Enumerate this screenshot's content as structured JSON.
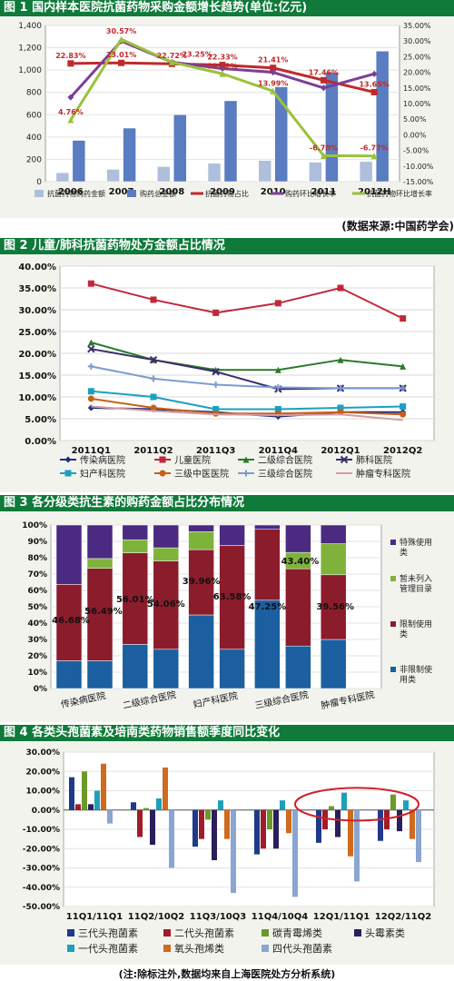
{
  "charts": {
    "c1": {
      "header": "图 1  国内样本医院抗菌药物采购金额增长趋势(单位:亿元)",
      "source": "(数据来源:中国药学会)"
    },
    "c2": {
      "header": "图 2  儿童/肺科抗菌药物处方金额占比情况"
    },
    "c3": {
      "header": "图 3  各分级类抗生素的购药金额占比分布情况"
    },
    "c4": {
      "header": "图 4  各类头孢菌素及培南类药物销售额季度同比变化",
      "note": "(注:除标注外,数据均来自上海医院处方分析系统)"
    }
  },
  "colors": {
    "header_bg": "#0f7a3a"
  },
  "chart_data": [
    {
      "type": "bar",
      "categories": [
        "2006",
        "2007",
        "2008",
        "2009",
        "2010",
        "2011",
        "2012H"
      ],
      "ylim": [
        0,
        1400
      ],
      "y2lim": [
        -15,
        35
      ],
      "yticks": [
        "0",
        "200",
        "400",
        "600",
        "800",
        "1,000",
        "1,200",
        "1,400"
      ],
      "y2ticks": [
        "-15.00%",
        "-10.00%",
        "-5.00%",
        "0.00%",
        "5.00%",
        "10.00%",
        "15.00%",
        "20.00%",
        "25.00%",
        "30.00%",
        "35.00%"
      ],
      "series": [
        {
          "name": "抗菌药物购药金额",
          "kind": "bar",
          "axis": "left",
          "color": "#aebfdc",
          "values": [
            80,
            110,
            135,
            165,
            190,
            175,
            180
          ]
        },
        {
          "name": "购药总金额",
          "kind": "bar",
          "axis": "left",
          "color": "#5a7cc0",
          "values": [
            370,
            480,
            600,
            725,
            850,
            980,
            1170
          ]
        },
        {
          "name": "抗菌药物占比",
          "kind": "line",
          "axis": "right",
          "color": "#c0292b",
          "values": [
            22.83,
            23.01,
            22.72,
            22.33,
            21.41,
            17.46,
            13.65
          ]
        },
        {
          "name": "购药环比增长率",
          "kind": "line",
          "axis": "right",
          "color": "#7b3f96",
          "values": [
            12.0,
            30.0,
            23.25,
            21.2,
            20.0,
            15.0,
            19.5
          ]
        },
        {
          "name": "抗菌药物环比增长率",
          "kind": "line",
          "axis": "right",
          "color": "#9ac23c",
          "values": [
            4.76,
            30.57,
            23.25,
            19.52,
            13.99,
            -6.7,
            -6.77
          ]
        }
      ],
      "annotations": [
        {
          "text": "22.83%",
          "i": 0,
          "y": 22.83,
          "color": "#c0292b"
        },
        {
          "text": "4.76%",
          "i": 0,
          "y": 4.76,
          "color": "#c0292b"
        },
        {
          "text": "30.57%",
          "i": 1,
          "y": 30.57,
          "color": "#c0292b"
        },
        {
          "text": "23.01%",
          "i": 1,
          "y": 23.01,
          "color": "#c0292b"
        },
        {
          "text": "22.72%",
          "i": 2,
          "y": 22.72,
          "color": "#c0292b"
        },
        {
          "text": "23.25%",
          "i": 2.5,
          "y": 23.25,
          "color": "#c0292b"
        },
        {
          "text": "22.33%",
          "i": 3,
          "y": 22.33,
          "color": "#c0292b"
        },
        {
          "text": "19.52%",
          "i": 3,
          "y": 19.52,
          "color": "#c0292b"
        },
        {
          "text": "21.41%",
          "i": 4,
          "y": 21.41,
          "color": "#c0292b"
        },
        {
          "text": "13.99%",
          "i": 4,
          "y": 13.99,
          "color": "#c0292b"
        },
        {
          "text": "17.46%",
          "i": 5,
          "y": 17.46,
          "color": "#c0292b"
        },
        {
          "text": "-6.70%",
          "i": 5,
          "y": -6.7,
          "color": "#c0292b"
        },
        {
          "text": "13.65%",
          "i": 6,
          "y": 13.65,
          "color": "#c0292b"
        },
        {
          "text": "-6.77%",
          "i": 6,
          "y": -6.77,
          "color": "#c0292b"
        }
      ],
      "legend": "bottom"
    },
    {
      "type": "line",
      "categories": [
        "2011Q1",
        "2011Q2",
        "2011Q3",
        "2011Q4",
        "2012Q1",
        "2012Q2"
      ],
      "ylim": [
        0,
        40
      ],
      "yticks": [
        "0.00%",
        "5.00%",
        "10.00%",
        "15.00%",
        "20.00%",
        "25.00%",
        "30.00%",
        "35.00%",
        "40.00%"
      ],
      "series": [
        {
          "name": "传染病医院",
          "color": "#1f2f7a",
          "marker": "diamond",
          "values": [
            7.5,
            7.2,
            6.5,
            5.5,
            6.5,
            6.5
          ]
        },
        {
          "name": "儿童医院",
          "color": "#c0283a",
          "marker": "square",
          "values": [
            36.0,
            32.3,
            29.3,
            31.5,
            35.0,
            28.0
          ]
        },
        {
          "name": "二级综合医院",
          "color": "#2a7a2a",
          "marker": "triangle",
          "values": [
            22.5,
            18.5,
            16.2,
            16.2,
            18.5,
            17.0
          ]
        },
        {
          "name": "肺科医院",
          "color": "#3b2d6b",
          "marker": "x",
          "values": [
            21.0,
            18.5,
            15.8,
            11.8,
            12.0,
            12.0
          ]
        },
        {
          "name": "妇产科医院",
          "color": "#1aa0c0",
          "marker": "square",
          "values": [
            11.3,
            10.0,
            7.2,
            7.2,
            7.5,
            7.8
          ]
        },
        {
          "name": "三级中医医院",
          "color": "#c86018",
          "marker": "circle",
          "values": [
            9.6,
            7.5,
            6.2,
            6.2,
            6.5,
            6.0
          ]
        },
        {
          "name": "三级综合医院",
          "color": "#7b9ad0",
          "marker": "plus",
          "values": [
            17.0,
            14.2,
            12.8,
            12.2,
            12.0,
            12.0
          ]
        },
        {
          "name": "肿瘤专科医院",
          "color": "#d49aa0",
          "marker": "none",
          "values": [
            7.8,
            6.8,
            6.0,
            5.8,
            6.0,
            4.7
          ]
        }
      ],
      "legend": "bottom"
    },
    {
      "type": "bar",
      "stacked": true,
      "categories": [
        "传染病医院",
        "二级综合医院",
        "妇产科医院",
        "三级综合医院",
        "肿瘤专科医院"
      ],
      "ylim": [
        0,
        100
      ],
      "yticks": [
        "0%",
        "10%",
        "20%",
        "30%",
        "40%",
        "50%",
        "60%",
        "70%",
        "80%",
        "90%",
        "100%"
      ],
      "series": [
        {
          "name": "非限制使用类",
          "color": "#1b5fa0",
          "values": [
            17,
            27,
            45,
            54,
            30
          ]
        },
        {
          "name": "限制使用类",
          "color": "#8b1c2c",
          "values": [
            46.68,
            56.01,
            39.96,
            43.4,
            39.56
          ]
        },
        {
          "name": "暂未列入管理目录",
          "color": "#7fb23a",
          "values": [
            0,
            8,
            11,
            0,
            19
          ]
        },
        {
          "name": "特殊使用类",
          "color": "#4b2a82",
          "values": [
            36.32,
            8.99,
            4.04,
            2.6,
            11.44
          ]
        }
      ],
      "series_b": [
        {
          "name": "非限制使用类",
          "color": "#1b5fa0",
          "values": [
            17,
            24,
            24,
            26,
            0
          ]
        },
        {
          "name": "限制使用类",
          "color": "#8b1c2c",
          "values": [
            56.49,
            54.06,
            63.58,
            47.25,
            0
          ]
        },
        {
          "name": "暂未列入管理目录",
          "color": "#7fb23a",
          "values": [
            6,
            8,
            0,
            10,
            0
          ]
        },
        {
          "name": "特殊使用类",
          "color": "#4b2a82",
          "values": [
            20.51,
            13.94,
            12.42,
            16.75,
            0
          ]
        }
      ],
      "labels": [
        "46.68%",
        "56.49%",
        "56.01%",
        "54.06%",
        "39.96%",
        "63.58%",
        "47.25%",
        "43.40%",
        "39.56%"
      ],
      "legend": "right"
    },
    {
      "type": "bar",
      "categories": [
        "11Q1/11Q1",
        "11Q2/10Q2",
        "11Q3/10Q3",
        "11Q4/10Q4",
        "12Q1/11Q1",
        "12Q2/11Q2"
      ],
      "ylim": [
        -50,
        30
      ],
      "yticks": [
        "-50.00%",
        "-40.00%",
        "-30.00%",
        "-20.00%",
        "-10.00%",
        "0.00%",
        "10.00%",
        "20.00%",
        "30.00%"
      ],
      "series": [
        {
          "name": "三代头孢菌素",
          "color": "#1f3a8a",
          "values": [
            17,
            4,
            -19,
            -23,
            -17,
            -16
          ]
        },
        {
          "name": "二代头孢菌素",
          "color": "#a01c2a",
          "values": [
            3,
            -14,
            -15,
            -20,
            -10,
            -10
          ]
        },
        {
          "name": "碳青霉烯类",
          "color": "#6a9a2a",
          "values": [
            20,
            1,
            -5,
            -10,
            2,
            8
          ]
        },
        {
          "name": "头霉素类",
          "color": "#2a1f5a",
          "values": [
            3,
            -18,
            -26,
            -20,
            -14,
            -11
          ]
        },
        {
          "name": "一代头孢菌素",
          "color": "#1ea0b8",
          "values": [
            10,
            6,
            5,
            5,
            9,
            5
          ]
        },
        {
          "name": "氧头孢烯类",
          "color": "#d06a1e",
          "values": [
            24,
            22,
            -15,
            -12,
            -24,
            -15
          ]
        },
        {
          "name": "四代头孢菌素",
          "color": "#8aa6d0",
          "values": [
            -7,
            -30,
            -43,
            -45,
            -37,
            -27
          ]
        }
      ],
      "legend": "bottom"
    }
  ]
}
